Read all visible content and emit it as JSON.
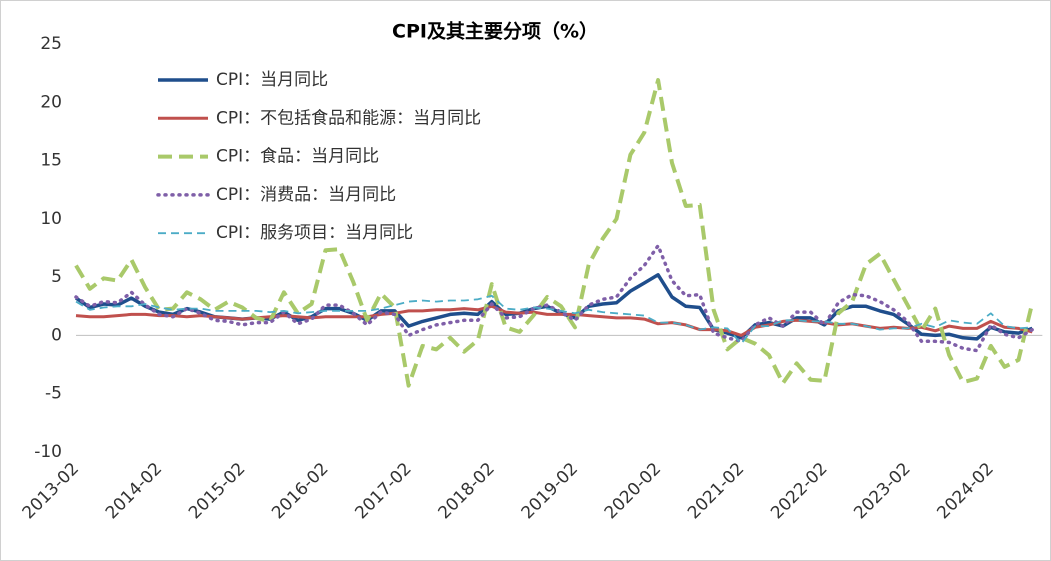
{
  "chart_data": {
    "type": "line",
    "title": "CPI及其主要分项（%）",
    "x": [
      "2013-02",
      "2013-04",
      "2013-06",
      "2013-08",
      "2013-10",
      "2013-12",
      "2014-02",
      "2014-04",
      "2014-06",
      "2014-08",
      "2014-10",
      "2014-12",
      "2015-02",
      "2015-04",
      "2015-06",
      "2015-08",
      "2015-10",
      "2015-12",
      "2016-02",
      "2016-04",
      "2016-06",
      "2016-08",
      "2016-10",
      "2016-12",
      "2017-02",
      "2017-04",
      "2017-06",
      "2017-08",
      "2017-10",
      "2017-12",
      "2018-02",
      "2018-04",
      "2018-06",
      "2018-08",
      "2018-10",
      "2018-12",
      "2019-02",
      "2019-04",
      "2019-06",
      "2019-08",
      "2019-10",
      "2019-12",
      "2020-02",
      "2020-04",
      "2020-06",
      "2020-08",
      "2020-10",
      "2020-12",
      "2021-02",
      "2021-04",
      "2021-06",
      "2021-08",
      "2021-10",
      "2021-12",
      "2022-02",
      "2022-04",
      "2022-06",
      "2022-08",
      "2022-10",
      "2022-12",
      "2023-02",
      "2023-04",
      "2023-06",
      "2023-08",
      "2023-10",
      "2023-12",
      "2024-02",
      "2024-04",
      "2024-06",
      "2024-08"
    ],
    "series": [
      {
        "name": "CPI：当月同比",
        "color": "#1f4e8c",
        "style": "solid",
        "width": 3.5,
        "values": [
          3.2,
          2.4,
          2.7,
          2.6,
          3.2,
          2.5,
          2.0,
          1.8,
          2.3,
          2.0,
          1.6,
          1.5,
          1.4,
          1.5,
          1.4,
          2.0,
          1.3,
          1.6,
          2.3,
          2.3,
          1.9,
          1.3,
          2.1,
          2.1,
          0.8,
          1.2,
          1.5,
          1.8,
          1.9,
          1.8,
          2.9,
          1.8,
          1.9,
          2.3,
          2.5,
          1.9,
          1.5,
          2.5,
          2.7,
          2.8,
          3.8,
          4.5,
          5.2,
          3.3,
          2.5,
          2.4,
          0.5,
          0.2,
          -0.2,
          0.9,
          1.1,
          0.8,
          1.5,
          1.5,
          0.9,
          2.1,
          2.5,
          2.5,
          2.1,
          1.8,
          1.0,
          0.1,
          0.0,
          0.1,
          -0.2,
          -0.3,
          0.7,
          0.3,
          0.2,
          0.6
        ]
      },
      {
        "name": "CPI：不包括食品和能源：当月同比",
        "color": "#c0504d",
        "style": "solid",
        "width": 3,
        "values": [
          1.7,
          1.6,
          1.6,
          1.7,
          1.8,
          1.8,
          1.7,
          1.7,
          1.6,
          1.7,
          1.6,
          1.5,
          1.4,
          1.5,
          1.6,
          1.7,
          1.6,
          1.5,
          1.6,
          1.6,
          1.6,
          1.6,
          1.8,
          1.9,
          2.1,
          2.1,
          2.2,
          2.2,
          2.3,
          2.2,
          2.5,
          2.0,
          1.9,
          2.0,
          1.8,
          1.8,
          1.8,
          1.7,
          1.6,
          1.5,
          1.5,
          1.4,
          1.0,
          1.1,
          0.9,
          0.5,
          0.5,
          0.4,
          0.0,
          0.7,
          0.9,
          1.2,
          1.3,
          1.2,
          1.1,
          0.9,
          1.0,
          0.8,
          0.6,
          0.7,
          0.6,
          0.7,
          0.4,
          0.8,
          0.6,
          0.6,
          1.2,
          0.7,
          0.6,
          0.3
        ]
      },
      {
        "name": "CPI：食品：当月同比",
        "color": "#a9c96a",
        "style": "dashed",
        "width": 4,
        "values": [
          6.0,
          4.0,
          4.9,
          4.7,
          6.5,
          4.1,
          2.2,
          2.3,
          3.7,
          3.1,
          2.2,
          2.9,
          2.4,
          1.5,
          1.2,
          3.7,
          1.9,
          2.7,
          7.3,
          7.4,
          4.6,
          1.3,
          3.6,
          2.4,
          -4.3,
          -0.9,
          -1.2,
          -0.2,
          -1.4,
          -0.4,
          4.4,
          0.7,
          0.3,
          1.7,
          3.3,
          2.5,
          0.7,
          6.1,
          8.3,
          10.0,
          15.5,
          17.4,
          21.9,
          14.8,
          11.1,
          11.2,
          2.2,
          -1.2,
          -0.2,
          -0.7,
          -1.7,
          -4.1,
          -2.4,
          -3.8,
          -3.9,
          1.9,
          2.9,
          6.1,
          7.0,
          4.8,
          2.6,
          0.4,
          2.3,
          -1.7,
          -4.0,
          -3.7,
          -0.9,
          -2.7,
          -2.1,
          2.8
        ]
      },
      {
        "name": "CPI：消费品：当月同比",
        "color": "#7f5fa8",
        "style": "dotted",
        "width": 3.5,
        "values": [
          3.3,
          2.5,
          2.9,
          2.8,
          3.7,
          2.6,
          1.8,
          1.6,
          2.3,
          1.9,
          1.3,
          1.2,
          0.9,
          1.1,
          1.1,
          2.0,
          1.0,
          1.4,
          2.6,
          2.6,
          1.9,
          0.9,
          2.0,
          1.8,
          0.0,
          0.5,
          0.9,
          1.1,
          1.3,
          1.3,
          2.7,
          1.5,
          1.6,
          2.3,
          2.6,
          2.0,
          1.3,
          2.6,
          3.1,
          3.3,
          4.9,
          6.0,
          7.7,
          4.7,
          3.4,
          3.5,
          0.2,
          -0.2,
          -0.5,
          0.9,
          1.5,
          0.8,
          2.0,
          2.0,
          0.9,
          2.8,
          3.5,
          3.4,
          2.9,
          2.2,
          1.2,
          -0.5,
          -0.5,
          -0.6,
          -1.1,
          -1.3,
          0.9,
          0.1,
          -0.2,
          0.5
        ]
      },
      {
        "name": "CPI：服务项目：当月同比",
        "color": "#4bacc6",
        "style": "dashthin",
        "width": 1.8,
        "values": [
          2.9,
          2.2,
          2.4,
          2.5,
          2.5,
          2.7,
          2.4,
          2.2,
          2.3,
          2.3,
          2.1,
          2.1,
          2.1,
          2.1,
          2.0,
          2.1,
          1.9,
          2.0,
          2.1,
          2.1,
          2.1,
          2.1,
          2.3,
          2.6,
          2.9,
          3.0,
          2.9,
          3.0,
          3.0,
          3.1,
          3.4,
          2.3,
          2.2,
          2.4,
          2.3,
          2.1,
          1.9,
          2.2,
          2.0,
          1.9,
          1.8,
          1.7,
          1.1,
          1.1,
          0.9,
          0.5,
          0.7,
          0.6,
          -0.7,
          0.8,
          0.8,
          1.3,
          1.3,
          1.2,
          1.2,
          1.0,
          1.0,
          0.8,
          0.5,
          0.6,
          0.6,
          1.0,
          0.7,
          1.3,
          1.1,
          1.0,
          1.9,
          0.8,
          0.6,
          0.7
        ]
      }
    ],
    "ylim": [
      -10,
      25
    ],
    "yticks": [
      -10,
      -5,
      0,
      5,
      10,
      15,
      20,
      25
    ],
    "grid": false,
    "legend": "upper-left"
  }
}
